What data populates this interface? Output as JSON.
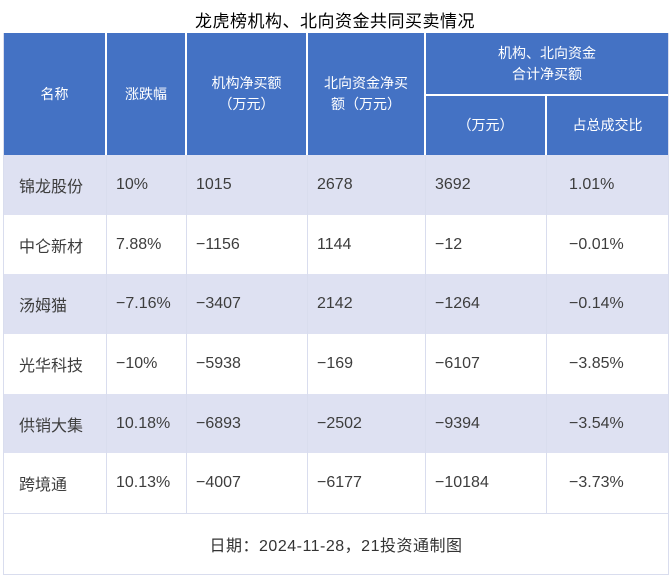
{
  "title": "龙虎榜机构、北向资金共同买卖情况",
  "footer": "日期：2024-11-28，21投资通制图",
  "colors": {
    "header_bg": "#4472C4",
    "header_text": "#FFFFFF",
    "row_alt_bg": "#DEE1F2",
    "row_bg": "#FFFFFF",
    "border": "#D9DDEE",
    "cell_text": "#3D3D3D"
  },
  "table": {
    "headers": {
      "name": "名称",
      "change": "涨跌幅",
      "inst_net_buy": "机构净买额\n（万元）",
      "north_net_buy": "北向资金净买\n额（万元）",
      "combined_group": "机构、北向资金\n合计净买额",
      "combined_amount": "（万元）",
      "combined_pct": "占总成交比"
    },
    "rows": [
      {
        "name": "锦龙股份",
        "change": "10%",
        "inst": "1015",
        "north": "2678",
        "total": "3692",
        "pct": "1.01%"
      },
      {
        "name": "中仑新材",
        "change": "7.88%",
        "inst": "−1156",
        "north": "1144",
        "total": "−12",
        "pct": "−0.01%"
      },
      {
        "name": "汤姆猫",
        "change": "−7.16%",
        "inst": "−3407",
        "north": "2142",
        "total": "−1264",
        "pct": "−0.14%"
      },
      {
        "name": "光华科技",
        "change": "−10%",
        "inst": "−5938",
        "north": "−169",
        "total": "−6107",
        "pct": "−3.85%"
      },
      {
        "name": "供销大集",
        "change": "10.18%",
        "inst": "−6893",
        "north": "−2502",
        "total": "−9394",
        "pct": "−3.54%"
      },
      {
        "name": "跨境通",
        "change": "10.13%",
        "inst": "−4007",
        "north": "−6177",
        "total": "−10184",
        "pct": "−3.73%"
      }
    ]
  },
  "chart_data": {
    "type": "table",
    "title": "龙虎榜机构、北向资金共同买卖情况",
    "columns": [
      "名称",
      "涨跌幅",
      "机构净买额（万元）",
      "北向资金净买额（万元）",
      "机构、北向资金合计净买额（万元）",
      "机构、北向资金合计净买额占总成交比"
    ],
    "rows": [
      [
        "锦龙股份",
        "10%",
        1015,
        2678,
        3692,
        "1.01%"
      ],
      [
        "中仑新材",
        "7.88%",
        -1156,
        1144,
        -12,
        "−0.01%"
      ],
      [
        "汤姆猫",
        "−7.16%",
        -3407,
        2142,
        -1264,
        "−0.14%"
      ],
      [
        "光华科技",
        "−10%",
        -5938,
        -169,
        -6107,
        "−3.85%"
      ],
      [
        "供销大集",
        "10.18%",
        -6893,
        -2502,
        -9394,
        "−3.54%"
      ],
      [
        "跨境通",
        "10.13%",
        -4007,
        -6177,
        -10184,
        "−3.73%"
      ]
    ],
    "source_note": "日期：2024-11-28，21投资通制图"
  }
}
